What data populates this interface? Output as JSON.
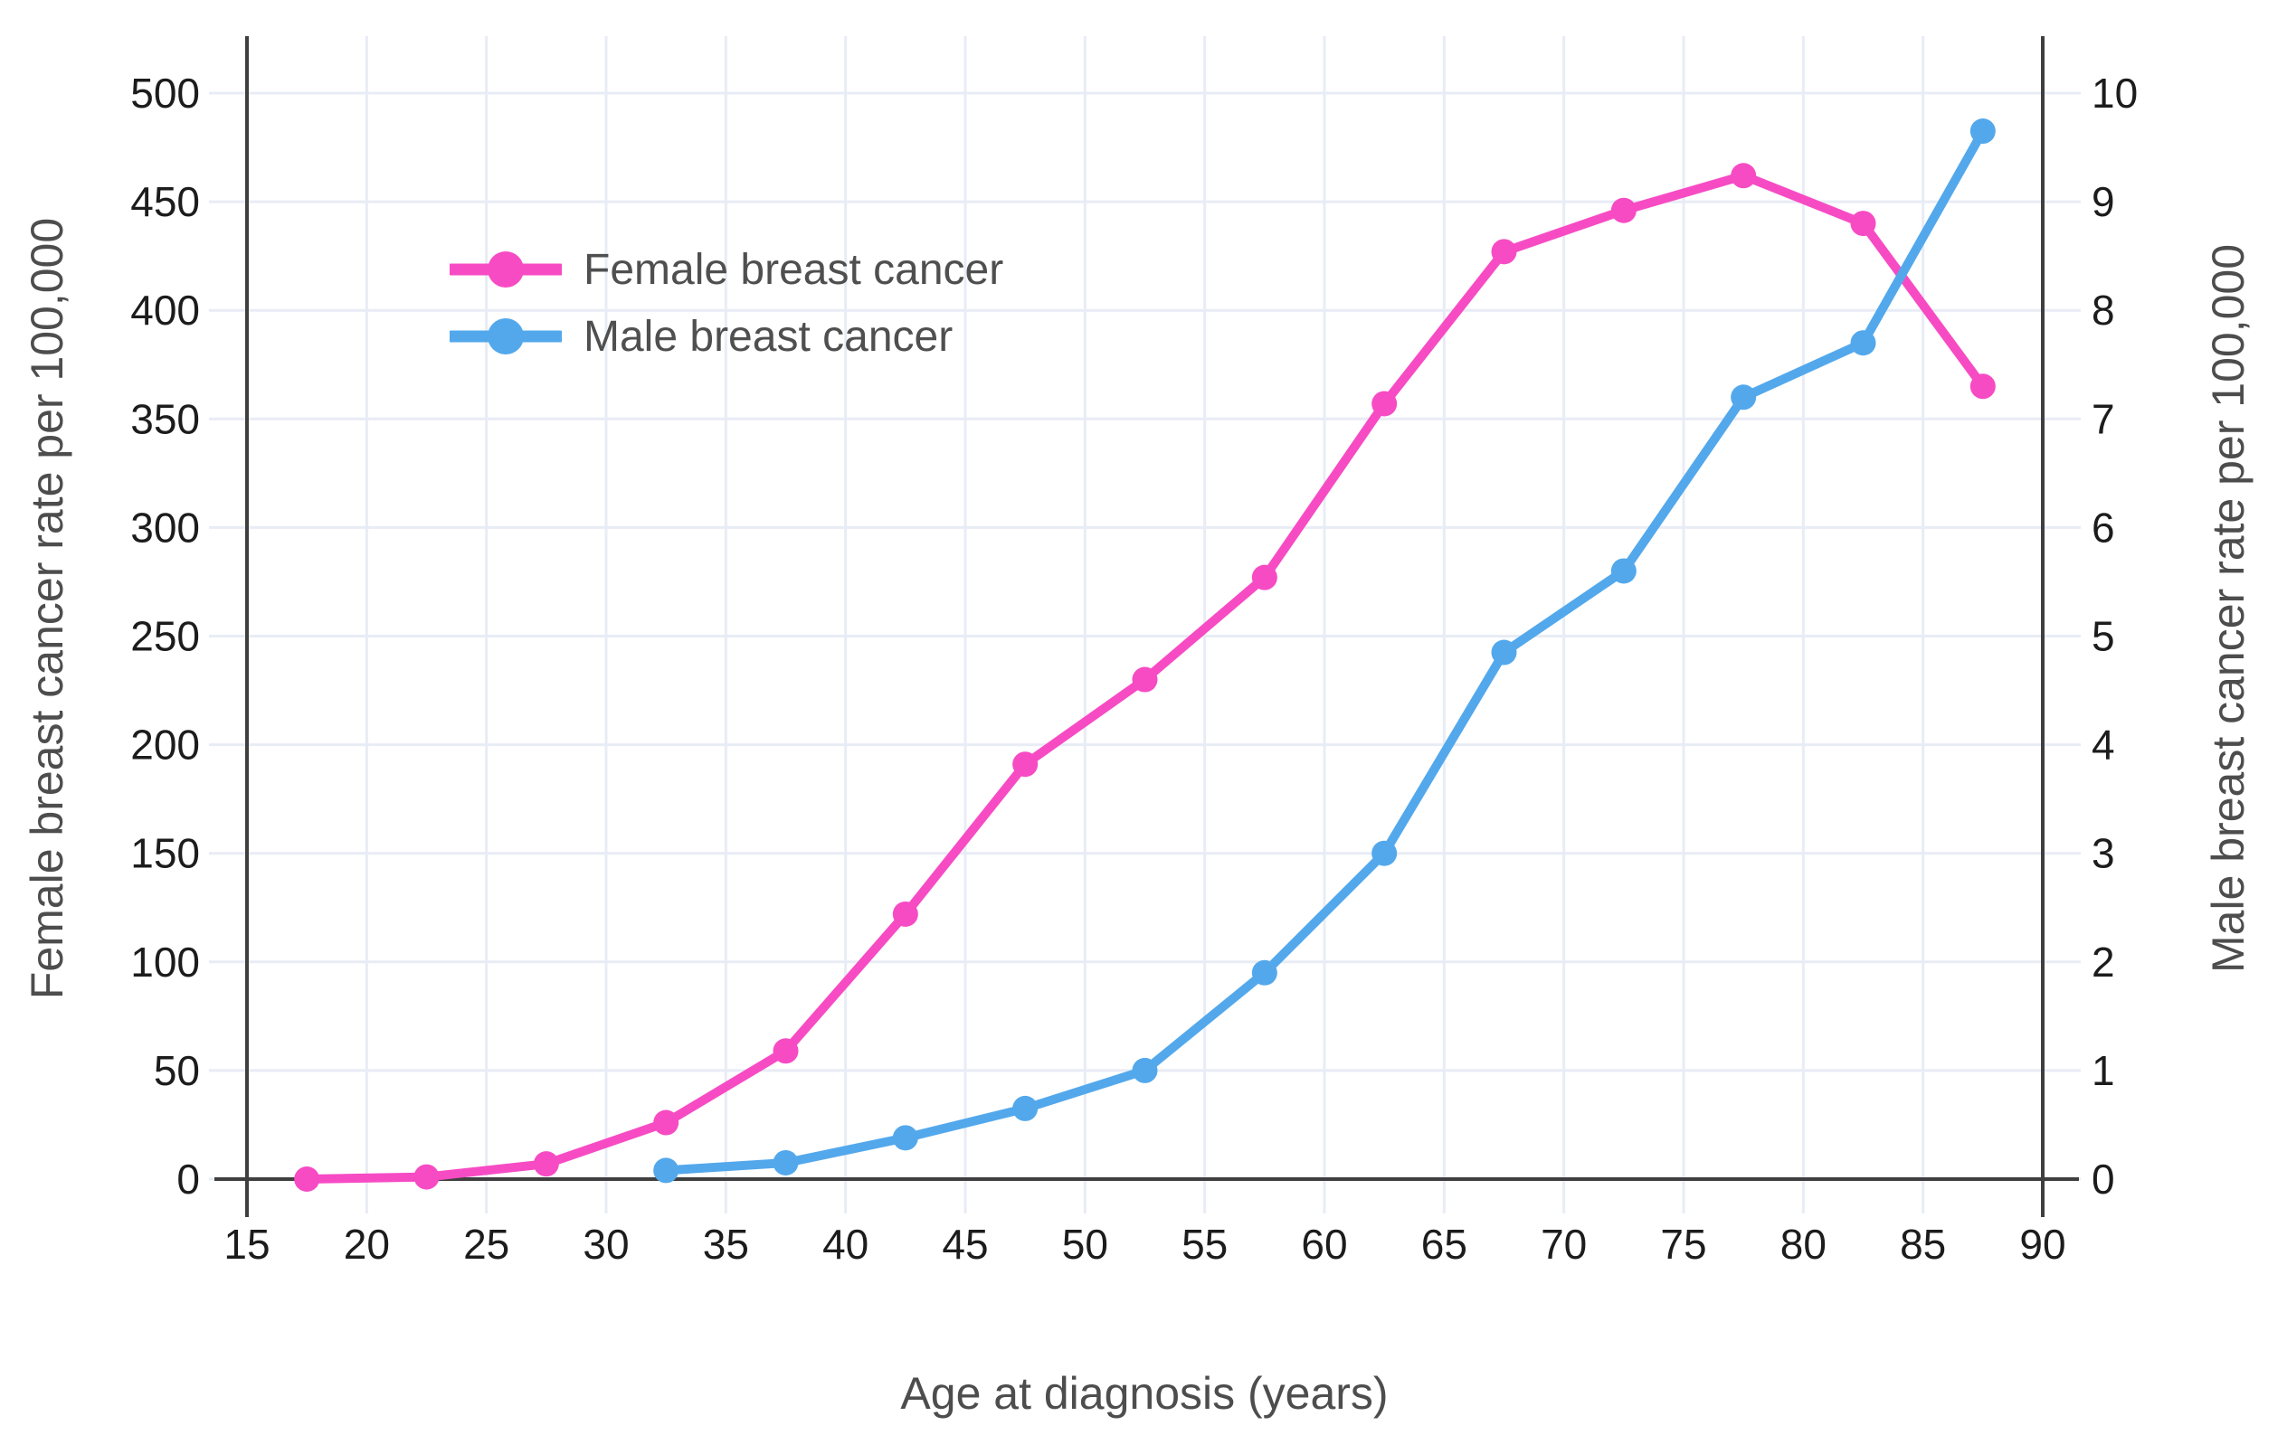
{
  "chart_data": {
    "type": "line",
    "title": "",
    "grid": true,
    "legend_position": "inside-upper-left",
    "x_axis": {
      "label": "Age at diagnosis (years)",
      "min": 15,
      "max": 90,
      "tick_step": 5,
      "ticks": [
        15,
        20,
        25,
        30,
        35,
        40,
        45,
        50,
        55,
        60,
        65,
        70,
        75,
        80,
        85,
        90
      ]
    },
    "y_axis_left": {
      "label": "Female breast cancer rate per 100,000",
      "min": 0,
      "max": 500,
      "tick_step": 50,
      "ticks": [
        0,
        50,
        100,
        150,
        200,
        250,
        300,
        350,
        400,
        450,
        500
      ]
    },
    "y_axis_right": {
      "label": "Male breast cancer rate per 100,000",
      "min": 0,
      "max": 10,
      "tick_step": 1,
      "ticks": [
        0,
        1,
        2,
        3,
        4,
        5,
        6,
        7,
        8,
        9,
        10
      ]
    },
    "series": [
      {
        "name": "Female breast cancer",
        "axis": "left",
        "color": "#F74BC4",
        "x": [
          17.5,
          22.5,
          27.5,
          32.5,
          37.5,
          42.5,
          47.5,
          52.5,
          57.5,
          62.5,
          67.5,
          72.5,
          77.5,
          82.5,
          87.5
        ],
        "values": [
          0,
          1,
          7,
          26,
          59,
          122,
          191,
          230,
          277,
          357,
          427,
          446,
          462,
          440,
          365
        ]
      },
      {
        "name": "Male breast cancer",
        "axis": "right",
        "color": "#53A8EC",
        "x": [
          32.5,
          37.5,
          42.5,
          47.5,
          52.5,
          57.5,
          62.5,
          67.5,
          72.5,
          77.5,
          82.5,
          87.5
        ],
        "values": [
          0.08,
          0.15,
          0.38,
          0.65,
          1.0,
          1.9,
          3.0,
          4.85,
          5.6,
          7.2,
          7.7,
          9.65
        ]
      }
    ]
  },
  "colors": {
    "female": "#F74BC4",
    "male": "#53A8EC",
    "gridline": "#E8ECF5",
    "axis": "#3F3F3F",
    "tick_text": "#1C1C1C",
    "title_text": "#4D4D4D",
    "background": "#FFFFFF"
  }
}
